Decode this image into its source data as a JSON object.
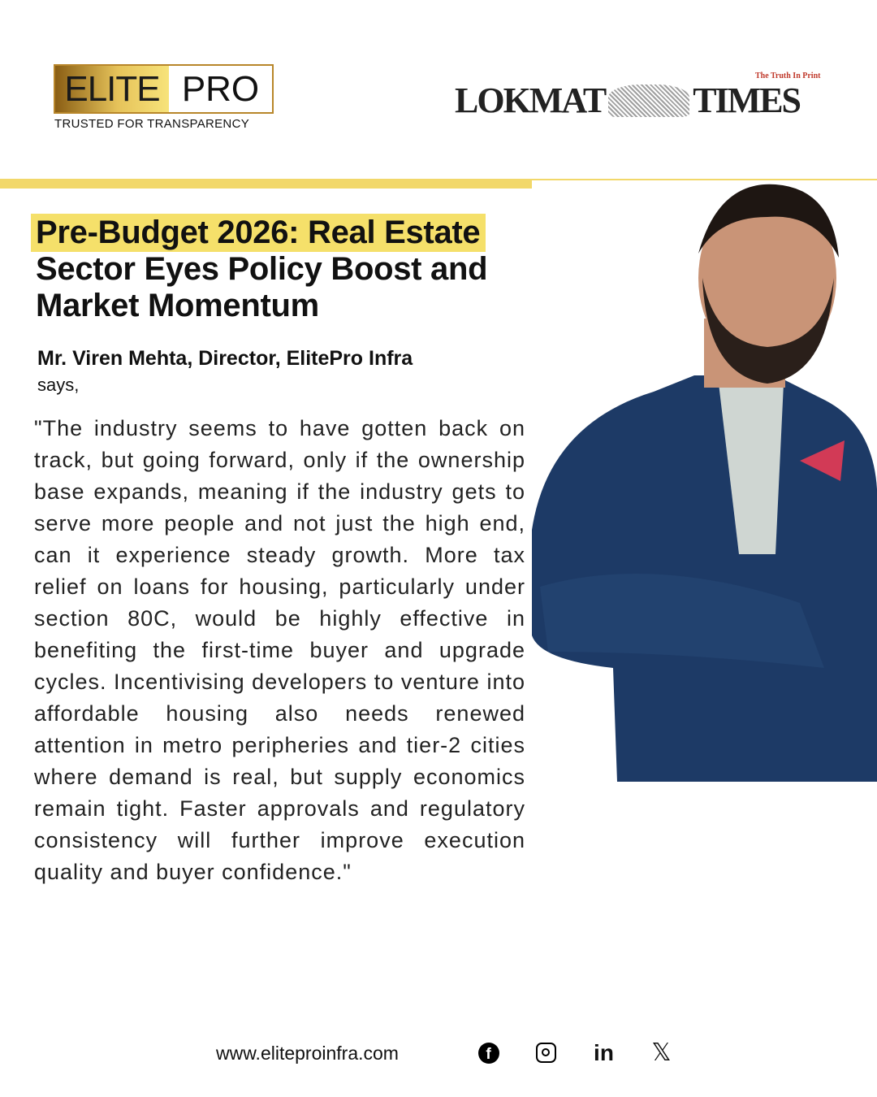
{
  "header": {
    "logo_left": {
      "word1": "ELITE",
      "word2": "PRO",
      "tagline": "TRUSTED FOR TRANSPARENCY"
    },
    "logo_right": {
      "word1": "LOKMAT",
      "word2": "TIMES",
      "motto": "The Truth In Print"
    }
  },
  "colors": {
    "accent_yellow": "#f2d86a",
    "gold": "#b8862a",
    "text": "#111111"
  },
  "article": {
    "title": "Pre-Budget 2026: Real Estate Sector Eyes Policy Boost and Market Momentum",
    "author": "Mr. Viren Mehta, Director, ElitePro Infra",
    "says": "says,",
    "quote": "\"The industry seems to have gotten back on track, but going forward, only if the ownership base expands, meaning if the industry gets to serve more people and not just the high end, can it experience steady growth. More tax relief on loans for housing, particularly under section 80C, would be highly effective in benefiting the first-time buyer and upgrade cycles. Incentivising developers to venture into affordable housing also needs renewed attention in metro peripheries and tier-2 cities where demand is real, but supply economics remain tight. Faster approvals and regulatory consistency will further improve execution quality and buyer confidence.\""
  },
  "footer": {
    "website": "www.eliteproinfra.com",
    "social": [
      {
        "icon": "facebook-icon",
        "glyph": "f"
      },
      {
        "icon": "instagram-icon"
      },
      {
        "icon": "linkedin-icon",
        "glyph": "in"
      },
      {
        "icon": "x-icon",
        "glyph": "𝕏"
      }
    ]
  }
}
